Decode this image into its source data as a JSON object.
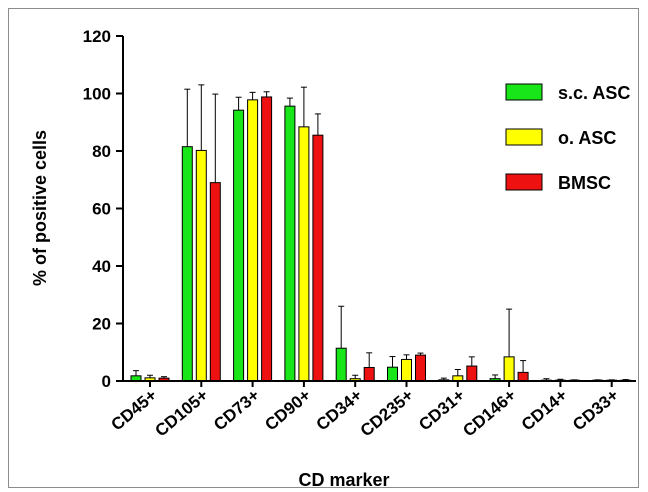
{
  "chart_data": {
    "type": "bar",
    "xlabel": "CD marker",
    "ylabel": "% of positive cells",
    "ylim": [
      0,
      120
    ],
    "yticks": [
      0,
      20,
      40,
      60,
      80,
      100,
      120
    ],
    "categories": [
      "CD45+",
      "CD105+",
      "CD73+",
      "CD90+",
      "CD34+",
      "CD235+",
      "CD31+",
      "CD146+",
      "CD14+",
      "CD33+"
    ],
    "series": [
      {
        "name": "s.c. ASC",
        "color": "#19e619",
        "values": [
          1.8,
          81.5,
          94.2,
          95.6,
          11.4,
          4.8,
          0.4,
          0.8,
          0.2,
          0.1
        ],
        "errors": [
          1.8,
          20.0,
          4.5,
          2.8,
          14.6,
          3.7,
          0.6,
          1.3,
          0.6,
          0.3
        ]
      },
      {
        "name": "o. ASC",
        "color": "#ffff00",
        "values": [
          1.1,
          80.2,
          97.8,
          88.4,
          0.8,
          7.5,
          1.8,
          8.4,
          0.2,
          0.1
        ],
        "errors": [
          0.9,
          22.8,
          2.6,
          13.8,
          1.2,
          1.6,
          2.2,
          16.6,
          0.4,
          0.3
        ]
      },
      {
        "name": "BMSC",
        "color": "#ee1111",
        "values": [
          1.0,
          69.0,
          98.8,
          85.5,
          4.7,
          9.0,
          5.2,
          3.0,
          0.1,
          0.2
        ],
        "errors": [
          0.5,
          30.8,
          1.8,
          7.4,
          5.1,
          0.7,
          3.2,
          4.1,
          0.3,
          0.3
        ]
      }
    ],
    "legend": {
      "placement": "top-right"
    }
  }
}
